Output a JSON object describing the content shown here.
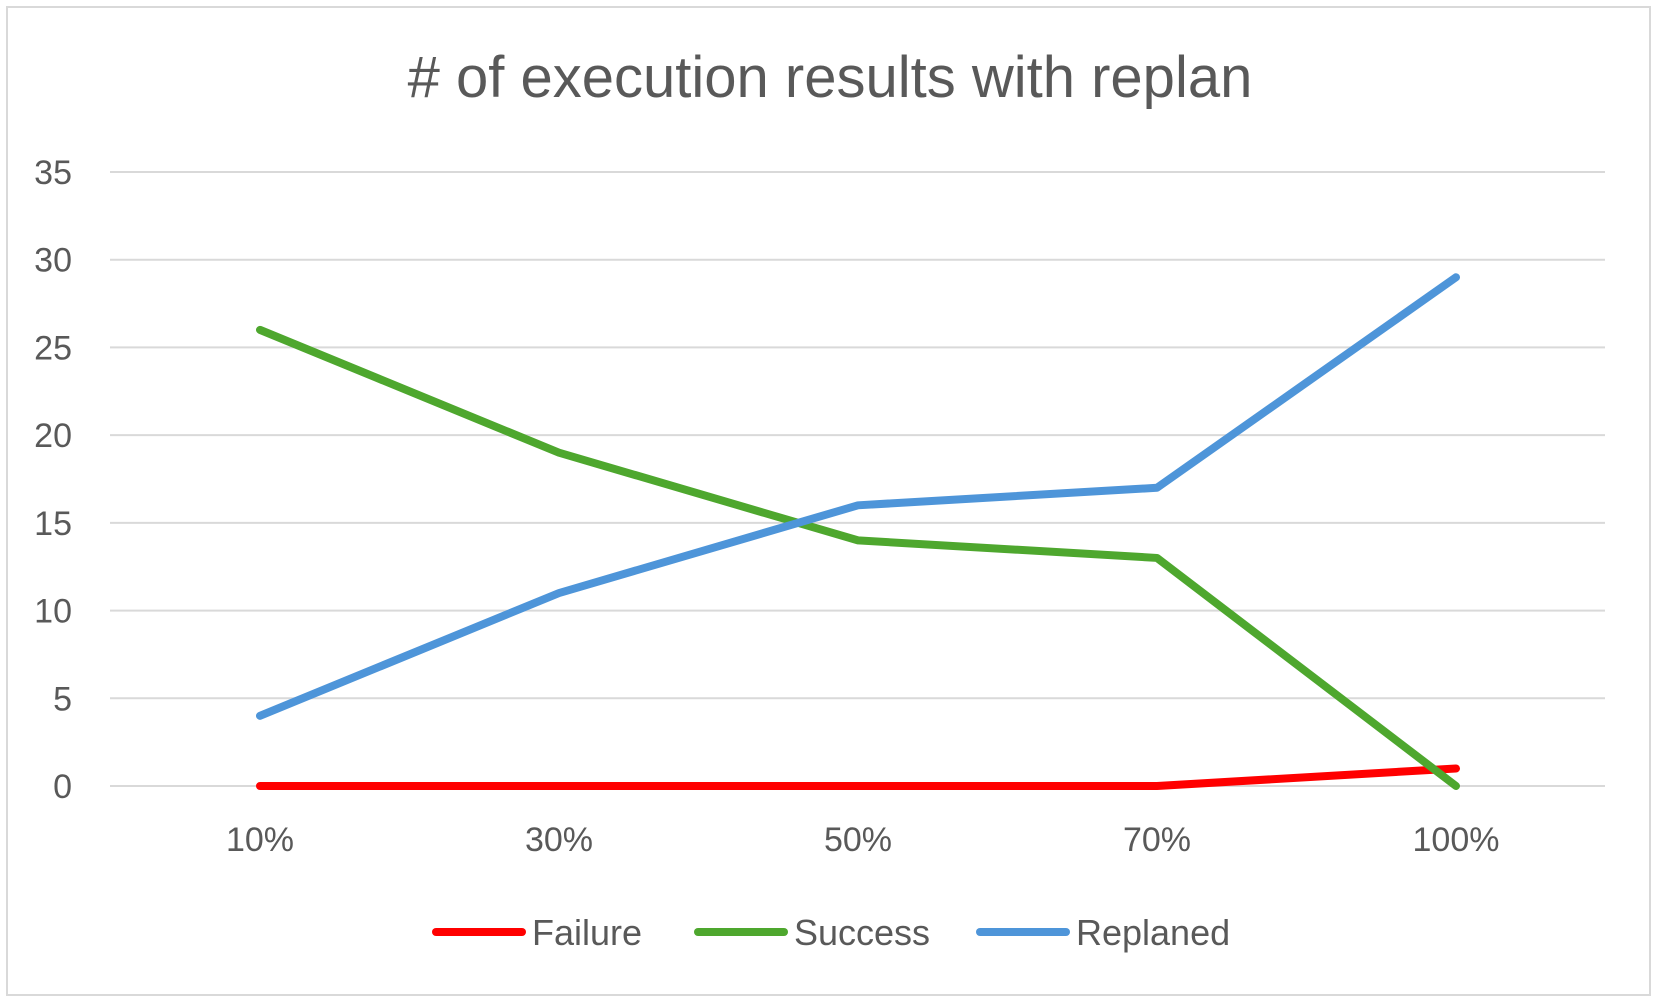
{
  "chart_data": {
    "type": "line",
    "title": "# of execution results with replan",
    "xlabel": "",
    "ylabel": "",
    "categories": [
      "10%",
      "30%",
      "50%",
      "70%",
      "100%"
    ],
    "ylim": [
      0,
      35
    ],
    "yticks": [
      0,
      5,
      10,
      15,
      20,
      25,
      30,
      35
    ],
    "grid": true,
    "legend": "bottom",
    "series": [
      {
        "name": "Failure",
        "color": "#ff0000",
        "values": [
          0,
          0,
          0,
          0,
          1
        ]
      },
      {
        "name": "Success",
        "color": "#4ea72e",
        "values": [
          26,
          19,
          14,
          13,
          0
        ]
      },
      {
        "name": "Replaned",
        "color": "#4e95d9",
        "values": [
          4,
          11,
          16,
          17,
          29
        ]
      }
    ]
  }
}
